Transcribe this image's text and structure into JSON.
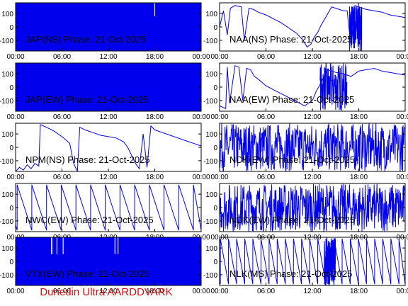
{
  "footer": "Dunedin Ultra AARDDVARK",
  "colors": {
    "trace": "#0000ee",
    "frame": "#000000",
    "footer": "#d01010"
  },
  "chart_data": [
    {
      "type": "line",
      "title": "JAP(NS) Phase: 21-Oct-2025",
      "x_ticks": [
        "00:00",
        "06:00",
        "12:00",
        "18:00",
        "00:00"
      ],
      "y_ticks": [
        "100",
        "0",
        "-100"
      ],
      "ylim": [
        -180,
        180
      ],
      "xlim_hours": [
        0,
        24
      ],
      "style": "filled",
      "fill_gaps": [
        [
          17.95,
          18.05
        ]
      ]
    },
    {
      "type": "line",
      "title": "NAA(NS) Phase: 21-Oct-2025",
      "x_ticks": [
        "00:00",
        "06:00",
        "12:00",
        "18:00",
        "00:00"
      ],
      "y_ticks": [
        "100",
        "0",
        "-100"
      ],
      "ylim": [
        -180,
        180
      ],
      "xlim_hours": [
        0,
        24
      ],
      "style": "line",
      "x": [
        0,
        0.5,
        1.0,
        1.4,
        2.0,
        2.8,
        3.2,
        3.8,
        4.4,
        5.0,
        5.5,
        6.0,
        7.0,
        8.0,
        9.0,
        10.0,
        10.8,
        11.3,
        11.8,
        12.2,
        12.7,
        13.1,
        13.6,
        14.0,
        14.5,
        15.0,
        15.5,
        16.0,
        16.5,
        17.0,
        17.5,
        18.0,
        18.5,
        19.0,
        20.0,
        21.0,
        22.0,
        23.0,
        24.0
      ],
      "y": [
        0,
        120,
        -60,
        140,
        160,
        150,
        -100,
        140,
        130,
        110,
        100,
        90,
        60,
        30,
        -10,
        -50,
        -100,
        -150,
        -130,
        -80,
        -40,
        10,
        60,
        100,
        150,
        140,
        130,
        120,
        120,
        -150,
        160,
        150,
        140,
        130,
        120,
        110,
        90,
        80,
        70
      ],
      "noise_band_hours": [
        [
          16.8,
          18.4
        ]
      ]
    },
    {
      "type": "line",
      "title": "JAP(EW) Phase: 21-Oct-2025",
      "x_ticks": [
        "00:00",
        "06:00",
        "12:00",
        "18:00",
        "00:00"
      ],
      "y_ticks": [
        "100",
        "0",
        "-100"
      ],
      "ylim": [
        -180,
        180
      ],
      "xlim_hours": [
        0,
        24
      ],
      "style": "filled"
    },
    {
      "type": "line",
      "title": "NAA(EW) Phase: 21-Oct-2025",
      "x_ticks": [
        "00:00",
        "06:00",
        "12:00",
        "18:00",
        "00:00"
      ],
      "y_ticks": [
        "100",
        "0",
        "-100"
      ],
      "ylim": [
        -180,
        180
      ],
      "xlim_hours": [
        0,
        24
      ],
      "style": "line",
      "x": [
        0,
        0.8,
        1.0,
        1.3,
        2.0,
        2.5,
        3.0,
        3.5,
        4.0,
        4.5,
        5.0,
        6.0,
        7.0,
        8.0,
        9.0,
        10.0,
        11.0,
        12.0,
        12.5,
        13.0,
        13.5,
        14.0,
        15.0,
        16.0,
        17.0,
        18.0,
        19.0,
        20.0,
        21.0,
        22.0,
        23.0,
        24.0
      ],
      "y": [
        -140,
        -160,
        150,
        -120,
        160,
        150,
        -100,
        140,
        130,
        80,
        60,
        10,
        -20,
        -50,
        -80,
        -110,
        -140,
        -100,
        -30,
        20,
        80,
        130,
        110,
        100,
        80,
        120,
        130,
        140,
        120,
        110,
        100,
        90
      ],
      "noise_band_hours": [
        [
          13.0,
          16.5
        ]
      ]
    },
    {
      "type": "line",
      "title": "NPM(NS) Phase: 21-Oct-2025",
      "x_ticks": [
        "00:00",
        "06:00",
        "12:00",
        "18:00",
        "00:00"
      ],
      "y_ticks": [
        "100",
        "0",
        "-100"
      ],
      "ylim": [
        -180,
        180
      ],
      "xlim_hours": [
        0,
        24
      ],
      "style": "line",
      "x": [
        0,
        0.5,
        1.0,
        1.5,
        2.0,
        2.5,
        3.0,
        3.2,
        4.0,
        5.0,
        6.0,
        7.0,
        7.5,
        8.0,
        8.3,
        9.0,
        10.0,
        11.0,
        12.0,
        13.0,
        14.0,
        14.5,
        15.0,
        15.5,
        16.0,
        16.5,
        17.0,
        17.5,
        18.0,
        19.0,
        20.0,
        21.0,
        22.0,
        23.0,
        24.0
      ],
      "y": [
        -180,
        -150,
        -170,
        -130,
        -160,
        -120,
        -140,
        170,
        150,
        120,
        80,
        30,
        -120,
        -180,
        150,
        130,
        110,
        90,
        80,
        70,
        40,
        0,
        -60,
        -120,
        -160,
        100,
        -150,
        160,
        130,
        110,
        90,
        70,
        50,
        30,
        10
      ]
    },
    {
      "type": "line",
      "title": "NDK(EW) Phase: 21-Oct-2025",
      "x_ticks": [
        "00:00",
        "06:00",
        "12:00",
        "18:00",
        "00:00"
      ],
      "y_ticks": [
        "100",
        "0",
        "-100"
      ],
      "ylim": [
        -180,
        180
      ],
      "xlim_hours": [
        0,
        24
      ],
      "style": "noise"
    },
    {
      "type": "line",
      "title": "NWC(EW) Phase: 21-Oct-2025",
      "x_ticks": [
        "00:00",
        "06:00",
        "12:00",
        "18:00",
        "00:00"
      ],
      "y_ticks": [
        "100",
        "0",
        "-100"
      ],
      "ylim": [
        -180,
        180
      ],
      "xlim_hours": [
        0,
        24
      ],
      "style": "sawtooth",
      "start_hour": 0.2,
      "period_hours": 1.9,
      "y_top": 170,
      "y_bottom": -170
    },
    {
      "type": "line",
      "title": "NDK(EW) Phase: 21-Oct-2025",
      "x_ticks": [
        "00:00",
        "06:00",
        "12:00",
        "18:00",
        "00:00"
      ],
      "y_ticks": [
        "100",
        "0",
        "-100"
      ],
      "ylim": [
        -180,
        180
      ],
      "xlim_hours": [
        0,
        24
      ],
      "style": "noise"
    },
    {
      "type": "line",
      "title": "VTX(EW) Phase: 21-Oct-2025",
      "x_ticks": [
        "00:00",
        "06:00",
        "12:00",
        "18:00",
        "00:00"
      ],
      "y_ticks": [
        "100",
        "0",
        "-100"
      ],
      "ylim": [
        -180,
        180
      ],
      "xlim_hours": [
        0,
        24
      ],
      "style": "filled",
      "gaps_hours": [
        [
          4.6,
          4.75
        ],
        [
          5.3,
          5.4
        ],
        [
          6.1,
          6.2
        ],
        [
          12.8,
          12.9
        ],
        [
          13.2,
          13.3
        ]
      ]
    },
    {
      "type": "line",
      "title": "NLK(MS) Phase: 21-Oct-2025",
      "x_ticks": [
        "00:00",
        "06:00",
        "12:00",
        "18:00",
        "00:00"
      ],
      "y_ticks": [
        "100",
        "0",
        "-100"
      ],
      "ylim": [
        -180,
        180
      ],
      "xlim_hours": [
        0,
        24
      ],
      "style": "sawtooth",
      "start_hour": 0.1,
      "period_hours": 1.05,
      "y_top": 170,
      "y_bottom": -170,
      "noise_band_hours": [
        [
          13.5,
          15.0
        ]
      ]
    }
  ]
}
